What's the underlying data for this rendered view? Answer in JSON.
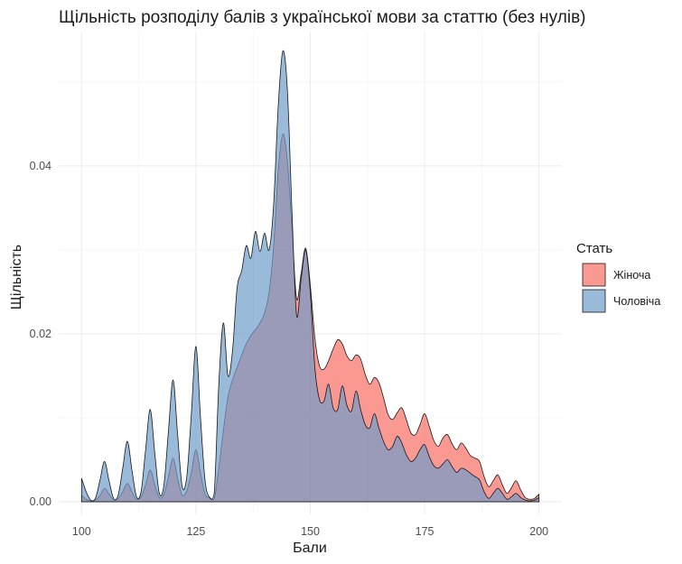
{
  "chart_data": {
    "type": "area",
    "title": "Щільність розподілу балів з української мови за статтю (без нулів)",
    "xlabel": "Бали",
    "ylabel": "Щільність",
    "xlim": [
      95,
      205
    ],
    "ylim": [
      -0.0015,
      0.056
    ],
    "x_ticks": [
      100,
      125,
      150,
      175,
      200
    ],
    "x_tick_labels": [
      "100",
      "125",
      "150",
      "175",
      "200"
    ],
    "y_ticks": [
      0,
      0.02,
      0.04
    ],
    "y_tick_labels": [
      "0.00",
      "0.02",
      "0.04"
    ],
    "grid": true,
    "legend": {
      "title": "Стать",
      "position": "right"
    },
    "series": [
      {
        "name": "Жіноча",
        "color": "#f8766d",
        "fill_opacity": 0.75,
        "points": [
          [
            100,
            0.0008
          ],
          [
            101,
            0.0003
          ],
          [
            102,
            0.0001
          ],
          [
            103,
            0.0002
          ],
          [
            104,
            0.0007
          ],
          [
            105,
            0.0016
          ],
          [
            106,
            0.0009
          ],
          [
            107,
            0.0002
          ],
          [
            108,
            0.0004
          ],
          [
            109,
            0.0012
          ],
          [
            110,
            0.0022
          ],
          [
            111,
            0.0012
          ],
          [
            112,
            0.0003
          ],
          [
            113,
            0.0006
          ],
          [
            114,
            0.002
          ],
          [
            115,
            0.0038
          ],
          [
            116,
            0.002
          ],
          [
            117,
            0.0005
          ],
          [
            118,
            0.0009
          ],
          [
            119,
            0.003
          ],
          [
            120,
            0.0052
          ],
          [
            121,
            0.0028
          ],
          [
            122,
            0.0008
          ],
          [
            123,
            0.0013
          ],
          [
            124,
            0.0035
          ],
          [
            125,
            0.0062
          ],
          [
            126,
            0.0034
          ],
          [
            127,
            0.0009
          ],
          [
            128,
            0.0005
          ],
          [
            129,
            0.0004
          ],
          [
            130,
            0.004
          ],
          [
            131,
            0.0085
          ],
          [
            132,
            0.0125
          ],
          [
            133,
            0.0145
          ],
          [
            134,
            0.016
          ],
          [
            135,
            0.0175
          ],
          [
            136,
            0.0188
          ],
          [
            137,
            0.0198
          ],
          [
            138,
            0.0205
          ],
          [
            139,
            0.0213
          ],
          [
            140,
            0.0225
          ],
          [
            141,
            0.025
          ],
          [
            142,
            0.0305
          ],
          [
            143,
            0.0395
          ],
          [
            144,
            0.0438
          ],
          [
            145,
            0.0405
          ],
          [
            146,
            0.0325
          ],
          [
            147,
            0.0242
          ],
          [
            148,
            0.0272
          ],
          [
            149,
            0.0302
          ],
          [
            150,
            0.0258
          ],
          [
            151,
            0.0195
          ],
          [
            152,
            0.0162
          ],
          [
            153,
            0.0158
          ],
          [
            154,
            0.0168
          ],
          [
            155,
            0.0182
          ],
          [
            156,
            0.0193
          ],
          [
            157,
            0.0188
          ],
          [
            158,
            0.0174
          ],
          [
            159,
            0.0168
          ],
          [
            160,
            0.0175
          ],
          [
            161,
            0.017
          ],
          [
            162,
            0.0152
          ],
          [
            163,
            0.014
          ],
          [
            164,
            0.0148
          ],
          [
            165,
            0.0142
          ],
          [
            166,
            0.0124
          ],
          [
            167,
            0.0104
          ],
          [
            168,
            0.0098
          ],
          [
            169,
            0.0106
          ],
          [
            170,
            0.0112
          ],
          [
            171,
            0.0098
          ],
          [
            172,
            0.0082
          ],
          [
            173,
            0.008
          ],
          [
            174,
            0.0092
          ],
          [
            175,
            0.0105
          ],
          [
            176,
            0.009
          ],
          [
            177,
            0.0073
          ],
          [
            178,
            0.0066
          ],
          [
            179,
            0.0076
          ],
          [
            180,
            0.008
          ],
          [
            181,
            0.0069
          ],
          [
            182,
            0.0062
          ],
          [
            183,
            0.007
          ],
          [
            184,
            0.0064
          ],
          [
            185,
            0.0055
          ],
          [
            186,
            0.0052
          ],
          [
            187,
            0.0048
          ],
          [
            188,
            0.003
          ],
          [
            189,
            0.0018
          ],
          [
            190,
            0.0025
          ],
          [
            191,
            0.0032
          ],
          [
            192,
            0.002
          ],
          [
            193,
            0.001
          ],
          [
            194,
            0.0017
          ],
          [
            195,
            0.0025
          ],
          [
            196,
            0.0014
          ],
          [
            197,
            0.0005
          ],
          [
            198,
            0.0003
          ],
          [
            199,
            0.0004
          ],
          [
            200,
            0.0009
          ]
        ]
      },
      {
        "name": "Чоловіча",
        "color": "#6f9cc9",
        "fill_opacity": 0.7,
        "points": [
          [
            100,
            0.0028
          ],
          [
            101,
            0.0012
          ],
          [
            102,
            0.0002
          ],
          [
            103,
            0.0004
          ],
          [
            104,
            0.0025
          ],
          [
            105,
            0.0048
          ],
          [
            106,
            0.0025
          ],
          [
            107,
            0.0004
          ],
          [
            108,
            0.0008
          ],
          [
            109,
            0.004
          ],
          [
            110,
            0.0072
          ],
          [
            111,
            0.0038
          ],
          [
            112,
            0.0006
          ],
          [
            113,
            0.0012
          ],
          [
            114,
            0.0062
          ],
          [
            115,
            0.011
          ],
          [
            116,
            0.0058
          ],
          [
            117,
            0.001
          ],
          [
            118,
            0.002
          ],
          [
            119,
            0.0085
          ],
          [
            120,
            0.0145
          ],
          [
            121,
            0.008
          ],
          [
            122,
            0.0018
          ],
          [
            123,
            0.003
          ],
          [
            124,
            0.0105
          ],
          [
            125,
            0.0185
          ],
          [
            126,
            0.01
          ],
          [
            127,
            0.0025
          ],
          [
            128,
            0.0005
          ],
          [
            129,
            0.001
          ],
          [
            130,
            0.014
          ],
          [
            131,
            0.0213
          ],
          [
            132,
            0.015
          ],
          [
            133,
            0.018
          ],
          [
            134,
            0.0255
          ],
          [
            135,
            0.0275
          ],
          [
            136,
            0.0305
          ],
          [
            137,
            0.029
          ],
          [
            138,
            0.0322
          ],
          [
            139,
            0.0298
          ],
          [
            140,
            0.032
          ],
          [
            141,
            0.03
          ],
          [
            142,
            0.0355
          ],
          [
            143,
            0.0472
          ],
          [
            144,
            0.0537
          ],
          [
            145,
            0.049
          ],
          [
            146,
            0.0345
          ],
          [
            147,
            0.0222
          ],
          [
            148,
            0.0265
          ],
          [
            149,
            0.03
          ],
          [
            150,
            0.025
          ],
          [
            151,
            0.016
          ],
          [
            152,
            0.0122
          ],
          [
            153,
            0.012
          ],
          [
            154,
            0.014
          ],
          [
            155,
            0.0112
          ],
          [
            156,
            0.011
          ],
          [
            157,
            0.0138
          ],
          [
            158,
            0.0115
          ],
          [
            159,
            0.0108
          ],
          [
            160,
            0.0132
          ],
          [
            161,
            0.011
          ],
          [
            162,
            0.0092
          ],
          [
            163,
            0.0088
          ],
          [
            164,
            0.0105
          ],
          [
            165,
            0.0088
          ],
          [
            166,
            0.0072
          ],
          [
            167,
            0.0062
          ],
          [
            168,
            0.0066
          ],
          [
            169,
            0.0078
          ],
          [
            170,
            0.007
          ],
          [
            171,
            0.0056
          ],
          [
            172,
            0.0048
          ],
          [
            173,
            0.0052
          ],
          [
            174,
            0.0062
          ],
          [
            175,
            0.0068
          ],
          [
            176,
            0.0054
          ],
          [
            177,
            0.0043
          ],
          [
            178,
            0.004
          ],
          [
            179,
            0.0045
          ],
          [
            180,
            0.005
          ],
          [
            181,
            0.0042
          ],
          [
            182,
            0.0035
          ],
          [
            183,
            0.004
          ],
          [
            184,
            0.0038
          ],
          [
            185,
            0.0034
          ],
          [
            186,
            0.003
          ],
          [
            187,
            0.0026
          ],
          [
            188,
            0.0012
          ],
          [
            189,
            0.0004
          ],
          [
            190,
            0.001
          ],
          [
            191,
            0.0016
          ],
          [
            192,
            0.001
          ],
          [
            193,
            0.0003
          ],
          [
            194,
            0.0006
          ],
          [
            195,
            0.001
          ],
          [
            196,
            0.0005
          ],
          [
            197,
            0.0002
          ],
          [
            198,
            0.0001
          ],
          [
            199,
            0.0002
          ],
          [
            200,
            0.0005
          ]
        ]
      }
    ]
  }
}
